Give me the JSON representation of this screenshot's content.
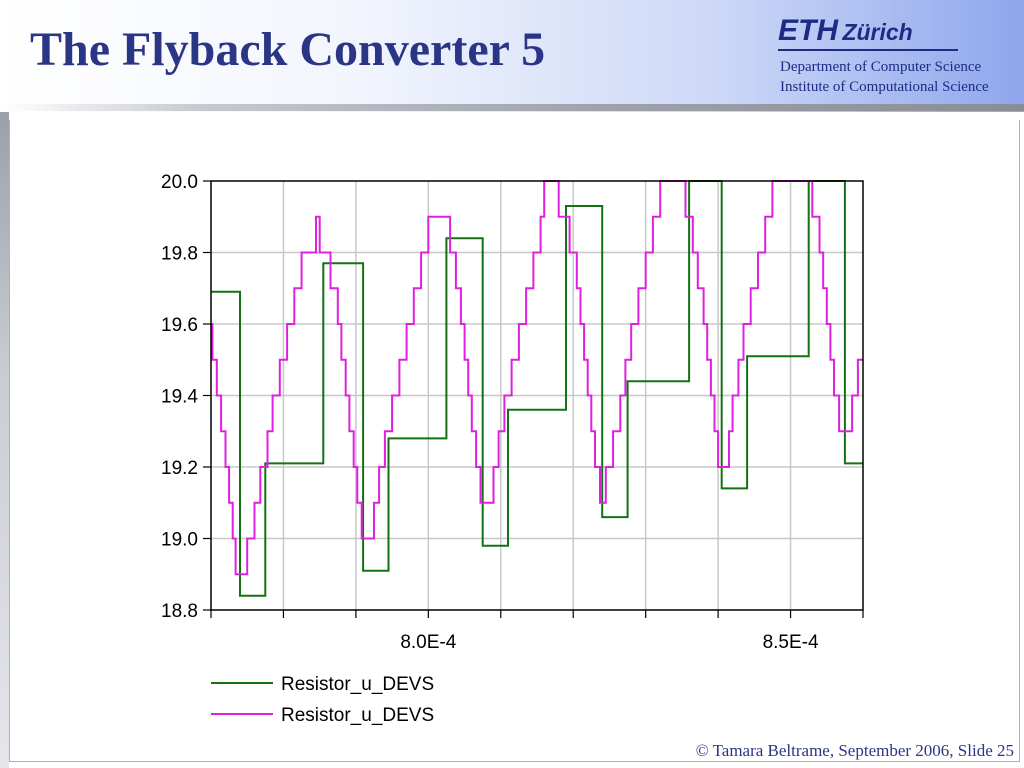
{
  "slide": {
    "title": "The Flyback Converter 5",
    "logo_eth": "ETH",
    "logo_zurich": "Zürich",
    "department": "Department of Computer Science",
    "institute": "Institute of Computational Science",
    "footer": "© Tamara Beltrame, September 2006, Slide 25"
  },
  "chart_data": {
    "type": "line",
    "xlim": [
      0.00077,
      0.00086
    ],
    "ylim": [
      18.8,
      20.0
    ],
    "y_ticks": [
      "20.0",
      "19.8",
      "19.6",
      "19.4",
      "19.2",
      "19.0",
      "18.8"
    ],
    "x_ticks": [
      {
        "value": 0.0008,
        "label": "8.0E-4"
      },
      {
        "value": 0.00085,
        "label": "8.5E-4"
      }
    ],
    "grid": true,
    "legend_position": "bottom-left",
    "series": [
      {
        "name": "Resistor_u_DEVS",
        "color": "#137213",
        "step": true,
        "points": [
          [
            0.00077,
            19.69
          ],
          [
            0.000774,
            18.84
          ],
          [
            0.0007775,
            19.21
          ],
          [
            0.0007855,
            19.77
          ],
          [
            0.000791,
            18.91
          ],
          [
            0.0007945,
            19.28
          ],
          [
            0.0008025,
            19.84
          ],
          [
            0.0008075,
            18.98
          ],
          [
            0.000811,
            19.36
          ],
          [
            0.000819,
            19.93
          ],
          [
            0.000824,
            19.06
          ],
          [
            0.0008275,
            19.44
          ],
          [
            0.000836,
            20.0
          ],
          [
            0.0008405,
            19.14
          ],
          [
            0.000844,
            19.51
          ],
          [
            0.0008525,
            20.0
          ],
          [
            0.0008575,
            19.21
          ],
          [
            0.00086,
            19.21
          ]
        ]
      },
      {
        "name": "Resistor_u_DEVS",
        "color": "#e020e0",
        "step": true,
        "points": [
          [
            0.00077,
            19.6
          ],
          [
            0.0007702,
            19.5
          ],
          [
            0.0007708,
            19.4
          ],
          [
            0.0007714,
            19.3
          ],
          [
            0.000772,
            19.2
          ],
          [
            0.0007725,
            19.1
          ],
          [
            0.000773,
            19.0
          ],
          [
            0.0007734,
            18.9
          ],
          [
            0.000775,
            19.0
          ],
          [
            0.000776,
            19.1
          ],
          [
            0.0007768,
            19.2
          ],
          [
            0.0007778,
            19.3
          ],
          [
            0.0007785,
            19.4
          ],
          [
            0.0007795,
            19.5
          ],
          [
            0.0007805,
            19.6
          ],
          [
            0.0007815,
            19.7
          ],
          [
            0.0007825,
            19.8
          ],
          [
            0.0007845,
            19.9
          ],
          [
            0.000785,
            19.8
          ],
          [
            0.0007865,
            19.7
          ],
          [
            0.0007875,
            19.6
          ],
          [
            0.000788,
            19.5
          ],
          [
            0.0007886,
            19.4
          ],
          [
            0.0007891,
            19.3
          ],
          [
            0.0007897,
            19.2
          ],
          [
            0.0007902,
            19.1
          ],
          [
            0.0007908,
            19.0
          ],
          [
            0.0007925,
            19.1
          ],
          [
            0.0007932,
            19.2
          ],
          [
            0.000794,
            19.3
          ],
          [
            0.000795,
            19.4
          ],
          [
            0.000796,
            19.5
          ],
          [
            0.000797,
            19.6
          ],
          [
            0.000798,
            19.7
          ],
          [
            0.000799,
            19.8
          ],
          [
            0.0008,
            19.9
          ],
          [
            0.000803,
            19.8
          ],
          [
            0.0008038,
            19.7
          ],
          [
            0.0008045,
            19.6
          ],
          [
            0.000805,
            19.5
          ],
          [
            0.0008055,
            19.4
          ],
          [
            0.000806,
            19.3
          ],
          [
            0.0008066,
            19.2
          ],
          [
            0.0008072,
            19.1
          ],
          [
            0.000809,
            19.2
          ],
          [
            0.0008097,
            19.3
          ],
          [
            0.0008105,
            19.4
          ],
          [
            0.0008115,
            19.5
          ],
          [
            0.0008125,
            19.6
          ],
          [
            0.0008135,
            19.7
          ],
          [
            0.0008145,
            19.8
          ],
          [
            0.0008155,
            19.9
          ],
          [
            0.000816,
            20.0
          ],
          [
            0.000818,
            19.9
          ],
          [
            0.0008195,
            19.8
          ],
          [
            0.0008205,
            19.7
          ],
          [
            0.000821,
            19.6
          ],
          [
            0.0008215,
            19.5
          ],
          [
            0.000822,
            19.4
          ],
          [
            0.0008225,
            19.3
          ],
          [
            0.000823,
            19.2
          ],
          [
            0.0008237,
            19.1
          ],
          [
            0.0008245,
            19.2
          ],
          [
            0.0008255,
            19.3
          ],
          [
            0.0008265,
            19.4
          ],
          [
            0.0008272,
            19.5
          ],
          [
            0.000828,
            19.6
          ],
          [
            0.000829,
            19.7
          ],
          [
            0.00083,
            19.8
          ],
          [
            0.000831,
            19.9
          ],
          [
            0.000832,
            20.0
          ],
          [
            0.000834,
            20.0
          ],
          [
            0.0008355,
            19.9
          ],
          [
            0.0008365,
            19.8
          ],
          [
            0.0008372,
            19.7
          ],
          [
            0.000838,
            19.6
          ],
          [
            0.0008385,
            19.5
          ],
          [
            0.000839,
            19.4
          ],
          [
            0.0008395,
            19.3
          ],
          [
            0.00084,
            19.2
          ],
          [
            0.0008415,
            19.3
          ],
          [
            0.000842,
            19.4
          ],
          [
            0.0008428,
            19.5
          ],
          [
            0.0008435,
            19.6
          ],
          [
            0.0008445,
            19.7
          ],
          [
            0.0008455,
            19.8
          ],
          [
            0.0008465,
            19.9
          ],
          [
            0.0008475,
            20.0
          ],
          [
            0.0008505,
            20.0
          ],
          [
            0.000853,
            19.9
          ],
          [
            0.000854,
            19.8
          ],
          [
            0.0008545,
            19.7
          ],
          [
            0.000855,
            19.6
          ],
          [
            0.0008555,
            19.5
          ],
          [
            0.000856,
            19.4
          ],
          [
            0.0008567,
            19.3
          ],
          [
            0.0008585,
            19.4
          ],
          [
            0.0008593,
            19.5
          ],
          [
            0.00086,
            19.5
          ]
        ]
      }
    ]
  }
}
